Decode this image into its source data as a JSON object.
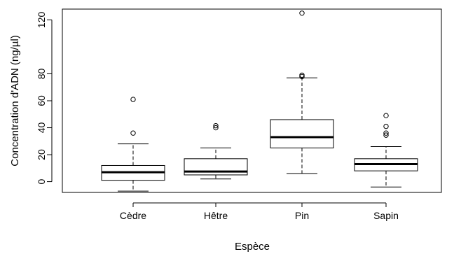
{
  "chart_data": {
    "type": "boxplot",
    "xlabel": "Espèce",
    "ylabel": "Concentration d'ADN (ng/µl)",
    "ylim": [
      -8,
      128
    ],
    "yticks": [
      0,
      20,
      40,
      60,
      80,
      120
    ],
    "grid": false,
    "categories": [
      "Cèdre",
      "Hêtre",
      "Pin",
      "Sapin"
    ],
    "boxes": [
      {
        "category": "Cèdre",
        "whisker_low": -7,
        "q1": 1,
        "median": 7,
        "q3": 12,
        "whisker_high": 28,
        "outliers": [
          36,
          61
        ]
      },
      {
        "category": "Hêtre",
        "whisker_low": 2,
        "q1": 5,
        "median": 7.5,
        "q3": 17,
        "whisker_high": 25,
        "outliers": [
          40,
          41.5
        ]
      },
      {
        "category": "Pin",
        "whisker_low": 6,
        "q1": 25,
        "median": 33,
        "q3": 46,
        "whisker_high": 77,
        "outliers": [
          78,
          79,
          125
        ]
      },
      {
        "category": "Sapin",
        "whisker_low": -4,
        "q1": 8,
        "median": 13,
        "q3": 17,
        "whisker_high": 26,
        "outliers": [
          34.5,
          36,
          41,
          49
        ]
      }
    ]
  }
}
